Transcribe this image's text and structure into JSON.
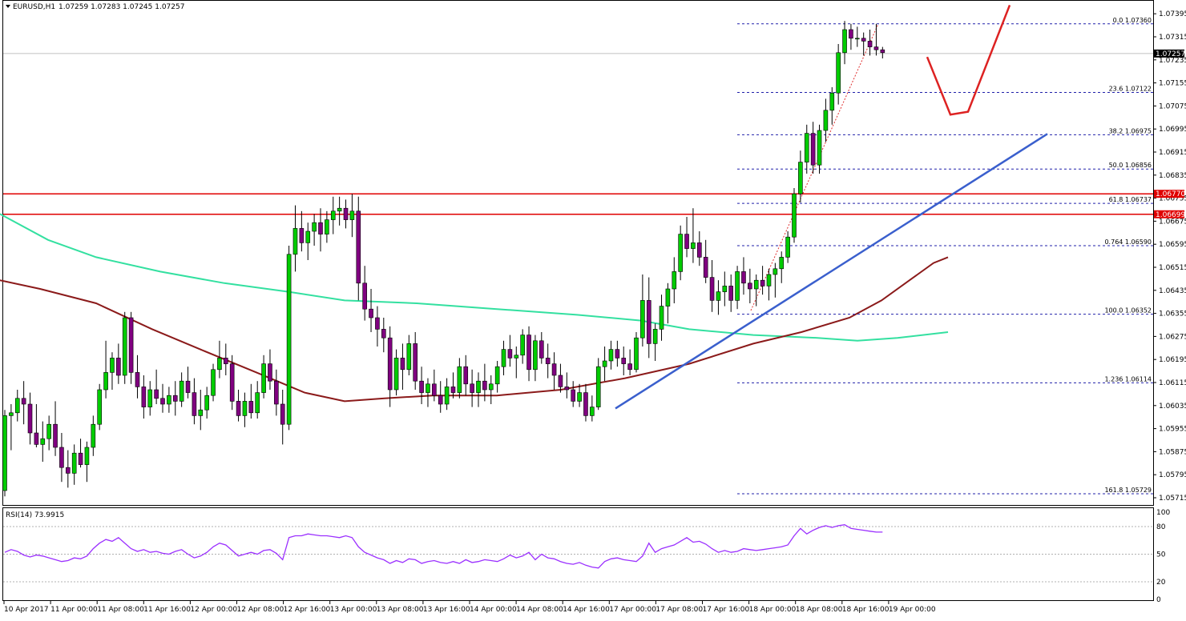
{
  "header": {
    "symbol": "EURUSD,H1",
    "ohlc": "1.07259 1.07283 1.07245 1.07257"
  },
  "rsi_panel": {
    "label": "RSI(14) 73.9915",
    "ticks": [
      "100",
      "80",
      "50",
      "20",
      "0"
    ]
  },
  "price_axis": {
    "ticks": [
      "1.07395",
      "1.07315",
      "1.07235",
      "1.07155",
      "1.07075",
      "1.06995",
      "1.06915",
      "1.06835",
      "1.06755",
      "1.06675",
      "1.06595",
      "1.06515",
      "1.06435",
      "1.06355",
      "1.06275",
      "1.06195",
      "1.06115",
      "1.06035",
      "1.05955",
      "1.05875",
      "1.05795",
      "1.05715"
    ],
    "current_price": "1.07257",
    "level_tags": [
      "1.06770",
      "1.06699"
    ]
  },
  "time_axis": {
    "labels": [
      "10 Apr 2017",
      "11 Apr 00:00",
      "11 Apr 08:00",
      "11 Apr 16:00",
      "12 Apr 00:00",
      "12 Apr 08:00",
      "12 Apr 16:00",
      "13 Apr 00:00",
      "13 Apr 08:00",
      "13 Apr 16:00",
      "14 Apr 00:00",
      "14 Apr 08:00",
      "14 Apr 16:00",
      "17 Apr 00:00",
      "17 Apr 08:00",
      "17 Apr 16:00",
      "18 Apr 00:00",
      "18 Apr 08:00",
      "18 Apr 16:00",
      "19 Apr 00:00"
    ]
  },
  "fib_labels": [
    "0.0 1.07360",
    "23.6 1.07122",
    "38.2 1.06975",
    "50.0 1.06856",
    "61.8 1.06737",
    "0.764 1.06590",
    "100.0 1.06352",
    "1.236 1.06114",
    "161.8 1.05729"
  ],
  "colors": {
    "bull": "#00cc00",
    "bear": "#800080",
    "wick": "#000000",
    "sma_fast": "#33e0a0",
    "sma_slow": "#8b1a1a",
    "fib": "#2020aa",
    "resistance": "#e00000",
    "trendline": "#3a5fcd",
    "projection": "#dd2222",
    "rsi": "#9b30ff"
  },
  "chart_data": {
    "type": "candlestick",
    "timeframe": "H1",
    "ylim": [
      1.0569,
      1.0744
    ],
    "x_labels": [
      "10 Apr 2017",
      "11 Apr 00:00",
      "11 Apr 08:00",
      "11 Apr 16:00",
      "12 Apr 00:00",
      "12 Apr 08:00",
      "12 Apr 16:00",
      "13 Apr 00:00",
      "13 Apr 08:00",
      "13 Apr 16:00",
      "14 Apr 00:00",
      "14 Apr 08:00",
      "14 Apr 16:00",
      "17 Apr 00:00",
      "17 Apr 08:00",
      "17 Apr 16:00",
      "18 Apr 00:00",
      "18 Apr 08:00",
      "18 Apr 16:00",
      "19 Apr 00:00"
    ],
    "bars": [
      [
        1.0574,
        1.0602,
        1.0572,
        1.06
      ],
      [
        1.06,
        1.0604,
        1.0588,
        1.0601
      ],
      [
        1.0601,
        1.0609,
        1.0598,
        1.0606
      ],
      [
        1.0606,
        1.0612,
        1.0597,
        1.0604
      ],
      [
        1.0604,
        1.0608,
        1.059,
        1.0594
      ],
      [
        1.0594,
        1.0604,
        1.0589,
        1.059
      ],
      [
        1.059,
        1.0598,
        1.0584,
        1.0592
      ],
      [
        1.0592,
        1.06,
        1.0588,
        1.0597
      ],
      [
        1.0597,
        1.0605,
        1.0586,
        1.0589
      ],
      [
        1.0589,
        1.0594,
        1.0577,
        1.0582
      ],
      [
        1.0582,
        1.0588,
        1.0575,
        1.058
      ],
      [
        1.058,
        1.059,
        1.0576,
        1.0587
      ],
      [
        1.0587,
        1.0592,
        1.0582,
        1.0583
      ],
      [
        1.0583,
        1.0591,
        1.0577,
        1.0589
      ],
      [
        1.0589,
        1.06,
        1.0586,
        1.0597
      ],
      [
        1.0597,
        1.0611,
        1.0595,
        1.0609
      ],
      [
        1.0609,
        1.0626,
        1.0606,
        1.0615
      ],
      [
        1.0615,
        1.0622,
        1.0609,
        1.062
      ],
      [
        1.062,
        1.0625,
        1.0611,
        1.0614
      ],
      [
        1.0614,
        1.0636,
        1.0611,
        1.0634
      ],
      [
        1.0634,
        1.0636,
        1.0611,
        1.0615
      ],
      [
        1.0615,
        1.0621,
        1.0606,
        1.061
      ],
      [
        1.061,
        1.0614,
        1.0599,
        1.0603
      ],
      [
        1.0603,
        1.0612,
        1.06,
        1.0609
      ],
      [
        1.0609,
        1.0616,
        1.0604,
        1.0606
      ],
      [
        1.0606,
        1.0611,
        1.0601,
        1.0604
      ],
      [
        1.0604,
        1.061,
        1.0601,
        1.0607
      ],
      [
        1.0607,
        1.0612,
        1.06,
        1.0605
      ],
      [
        1.0605,
        1.0615,
        1.0603,
        1.0612
      ],
      [
        1.0612,
        1.0617,
        1.0606,
        1.0608
      ],
      [
        1.0608,
        1.0613,
        1.0597,
        1.06
      ],
      [
        1.06,
        1.0609,
        1.0595,
        1.0602
      ],
      [
        1.0602,
        1.061,
        1.0599,
        1.0607
      ],
      [
        1.0607,
        1.0618,
        1.0605,
        1.0616
      ],
      [
        1.0616,
        1.0626,
        1.0613,
        1.062
      ],
      [
        1.062,
        1.0625,
        1.0614,
        1.0618
      ],
      [
        1.0618,
        1.0621,
        1.0602,
        1.0605
      ],
      [
        1.0605,
        1.0609,
        1.0598,
        1.06
      ],
      [
        1.06,
        1.0608,
        1.0596,
        1.0605
      ],
      [
        1.0605,
        1.0611,
        1.0599,
        1.0601
      ],
      [
        1.0601,
        1.0612,
        1.0599,
        1.0608
      ],
      [
        1.0608,
        1.0621,
        1.0606,
        1.0618
      ],
      [
        1.0618,
        1.0623,
        1.0609,
        1.0612
      ],
      [
        1.0612,
        1.0616,
        1.06,
        1.0604
      ],
      [
        1.0604,
        1.0609,
        1.059,
        1.0597
      ],
      [
        1.0597,
        1.0659,
        1.0595,
        1.0656
      ],
      [
        1.0656,
        1.0673,
        1.065,
        1.0665
      ],
      [
        1.0665,
        1.0671,
        1.0657,
        1.066
      ],
      [
        1.066,
        1.0667,
        1.0654,
        1.0664
      ],
      [
        1.0664,
        1.067,
        1.0659,
        1.0667
      ],
      [
        1.0667,
        1.0672,
        1.0657,
        1.0663
      ],
      [
        1.0663,
        1.0671,
        1.066,
        1.0668
      ],
      [
        1.0668,
        1.0676,
        1.0663,
        1.0671
      ],
      [
        1.0671,
        1.0676,
        1.0666,
        1.0672
      ],
      [
        1.0672,
        1.0675,
        1.0665,
        1.0668
      ],
      [
        1.0668,
        1.0677,
        1.0662,
        1.0671
      ],
      [
        1.0671,
        1.0676,
        1.064,
        1.0646
      ],
      [
        1.0646,
        1.0652,
        1.0633,
        1.0637
      ],
      [
        1.0637,
        1.0644,
        1.0629,
        1.0634
      ],
      [
        1.0634,
        1.0638,
        1.0624,
        1.063
      ],
      [
        1.063,
        1.0634,
        1.0622,
        1.0627
      ],
      [
        1.0627,
        1.0631,
        1.0603,
        1.0609
      ],
      [
        1.0609,
        1.0623,
        1.0607,
        1.062
      ],
      [
        1.062,
        1.0625,
        1.0609,
        1.0616
      ],
      [
        1.0616,
        1.0628,
        1.0614,
        1.0625
      ],
      [
        1.0625,
        1.0629,
        1.0609,
        1.0612
      ],
      [
        1.0612,
        1.0617,
        1.0604,
        1.0608
      ],
      [
        1.0608,
        1.0613,
        1.0603,
        1.0611
      ],
      [
        1.0611,
        1.0616,
        1.0605,
        1.0607
      ],
      [
        1.0607,
        1.0612,
        1.0601,
        1.0604
      ],
      [
        1.0604,
        1.0613,
        1.0602,
        1.061
      ],
      [
        1.061,
        1.0615,
        1.0606,
        1.0608
      ],
      [
        1.0608,
        1.062,
        1.0606,
        1.0617
      ],
      [
        1.0617,
        1.0621,
        1.0607,
        1.0611
      ],
      [
        1.0611,
        1.0616,
        1.0603,
        1.0608
      ],
      [
        1.0608,
        1.0615,
        1.0603,
        1.0612
      ],
      [
        1.0612,
        1.0618,
        1.0605,
        1.0609
      ],
      [
        1.0609,
        1.0614,
        1.0604,
        1.0611
      ],
      [
        1.0611,
        1.0619,
        1.0608,
        1.0617
      ],
      [
        1.0617,
        1.0626,
        1.0614,
        1.0623
      ],
      [
        1.0623,
        1.0628,
        1.0617,
        1.062
      ],
      [
        1.062,
        1.0624,
        1.0613,
        1.0621
      ],
      [
        1.0621,
        1.063,
        1.0618,
        1.0628
      ],
      [
        1.0628,
        1.0631,
        1.0612,
        1.0616
      ],
      [
        1.0616,
        1.0628,
        1.0612,
        1.0626
      ],
      [
        1.0626,
        1.0629,
        1.0618,
        1.062
      ],
      [
        1.062,
        1.0625,
        1.0613,
        1.0618
      ],
      [
        1.0618,
        1.0622,
        1.0609,
        1.0614
      ],
      [
        1.0614,
        1.0618,
        1.0608,
        1.061
      ],
      [
        1.061,
        1.0615,
        1.0606,
        1.0609
      ],
      [
        1.0609,
        1.0612,
        1.0603,
        1.0605
      ],
      [
        1.0605,
        1.0611,
        1.0603,
        1.0608
      ],
      [
        1.0608,
        1.0611,
        1.0598,
        1.06
      ],
      [
        1.06,
        1.0607,
        1.0598,
        1.0603
      ],
      [
        1.0603,
        1.062,
        1.0602,
        1.0617
      ],
      [
        1.0617,
        1.0624,
        1.0612,
        1.0619
      ],
      [
        1.0619,
        1.0626,
        1.0616,
        1.0623
      ],
      [
        1.0623,
        1.0626,
        1.0617,
        1.062
      ],
      [
        1.062,
        1.0624,
        1.0614,
        1.0618
      ],
      [
        1.0618,
        1.0623,
        1.0614,
        1.0616
      ],
      [
        1.0616,
        1.0629,
        1.0615,
        1.0627
      ],
      [
        1.0627,
        1.0649,
        1.0624,
        1.064
      ],
      [
        1.064,
        1.0648,
        1.062,
        1.0625
      ],
      [
        1.0625,
        1.0632,
        1.0619,
        1.063
      ],
      [
        1.063,
        1.0642,
        1.0626,
        1.0638
      ],
      [
        1.0638,
        1.0646,
        1.0632,
        1.0644
      ],
      [
        1.0644,
        1.0655,
        1.0639,
        1.065
      ],
      [
        1.065,
        1.0666,
        1.0647,
        1.0663
      ],
      [
        1.0663,
        1.0669,
        1.0655,
        1.0658
      ],
      [
        1.0658,
        1.0672,
        1.0653,
        1.066
      ],
      [
        1.066,
        1.0664,
        1.0652,
        1.0655
      ],
      [
        1.0655,
        1.0661,
        1.0646,
        1.0648
      ],
      [
        1.0648,
        1.0654,
        1.0636,
        1.064
      ],
      [
        1.064,
        1.0647,
        1.0635,
        1.0643
      ],
      [
        1.0643,
        1.065,
        1.0638,
        1.0645
      ],
      [
        1.0645,
        1.0649,
        1.0636,
        1.064
      ],
      [
        1.064,
        1.0652,
        1.0637,
        1.065
      ],
      [
        1.065,
        1.0655,
        1.0642,
        1.0646
      ],
      [
        1.0646,
        1.0651,
        1.0639,
        1.0644
      ],
      [
        1.0644,
        1.0649,
        1.0638,
        1.0647
      ],
      [
        1.0647,
        1.0652,
        1.0642,
        1.0645
      ],
      [
        1.0645,
        1.0651,
        1.064,
        1.0649
      ],
      [
        1.0649,
        1.0653,
        1.0641,
        1.0651
      ],
      [
        1.0651,
        1.0657,
        1.0646,
        1.0655
      ],
      [
        1.0655,
        1.0664,
        1.0653,
        1.0662
      ],
      [
        1.0662,
        1.0679,
        1.066,
        1.0677
      ],
      [
        1.0677,
        1.0692,
        1.0674,
        1.0688
      ],
      [
        1.0688,
        1.0701,
        1.0684,
        1.0698
      ],
      [
        1.0698,
        1.0702,
        1.0684,
        1.0687
      ],
      [
        1.0687,
        1.0701,
        1.0684,
        1.0699
      ],
      [
        1.0699,
        1.071,
        1.0695,
        1.0706
      ],
      [
        1.0706,
        1.0714,
        1.0701,
        1.0712
      ],
      [
        1.0712,
        1.0729,
        1.0708,
        1.0726
      ],
      [
        1.0726,
        1.0737,
        1.0722,
        1.0734
      ],
      [
        1.0734,
        1.0736,
        1.0727,
        1.0731
      ],
      [
        1.0731,
        1.0735,
        1.0728,
        1.0731
      ],
      [
        1.0731,
        1.0733,
        1.0725,
        1.073
      ],
      [
        1.073,
        1.0734,
        1.0725,
        1.0728
      ],
      [
        1.0728,
        1.0736,
        1.0725,
        1.0727
      ],
      [
        1.0727,
        1.0728,
        1.0724,
        1.0726
      ]
    ],
    "sma_fast": [
      [
        0,
        1.067
      ],
      [
        60,
        1.0661
      ],
      [
        120,
        1.0655
      ],
      [
        200,
        1.065
      ],
      [
        280,
        1.0646
      ],
      [
        360,
        1.0643
      ],
      [
        430,
        1.064
      ],
      [
        520,
        1.0639
      ],
      [
        620,
        1.0637
      ],
      [
        720,
        1.0635
      ],
      [
        800,
        1.0633
      ],
      [
        860,
        1.063
      ],
      [
        940,
        1.0628
      ],
      [
        1020,
        1.0627
      ],
      [
        1070,
        1.0626
      ],
      [
        1120,
        1.0627
      ],
      [
        1183,
        1.0629
      ]
    ],
    "sma_slow": [
      [
        0,
        1.0647
      ],
      [
        50,
        1.0644
      ],
      [
        120,
        1.0639
      ],
      [
        190,
        1.063
      ],
      [
        250,
        1.0623
      ],
      [
        320,
        1.0615
      ],
      [
        380,
        1.0608
      ],
      [
        430,
        1.0605
      ],
      [
        480,
        1.0606
      ],
      [
        540,
        1.0607
      ],
      [
        620,
        1.0607
      ],
      [
        700,
        1.0609
      ],
      [
        780,
        1.0613
      ],
      [
        860,
        1.0618
      ],
      [
        940,
        1.0625
      ],
      [
        1000,
        1.0629
      ],
      [
        1060,
        1.0634
      ],
      [
        1100,
        1.064
      ],
      [
        1140,
        1.0648
      ],
      [
        1165,
        1.0653
      ],
      [
        1183,
        1.0655
      ]
    ],
    "fib_levels": [
      1.0736,
      1.07122,
      1.06975,
      1.06856,
      1.06737,
      1.0659,
      1.06352,
      1.06114,
      1.05729
    ],
    "horizontal_levels": [
      1.0677,
      1.06699
    ],
    "current_price": 1.07257,
    "trendline": [
      [
        768,
        1.06025
      ],
      [
        1307,
        1.06978
      ]
    ],
    "projection": [
      [
        1157,
        1.07245
      ],
      [
        1186,
        1.07045
      ],
      [
        1208,
        1.07055
      ],
      [
        1260,
        1.07425
      ]
    ],
    "fib_swing_line": [
      [
        937,
        1.06365
      ],
      [
        1096,
        1.0736
      ]
    ],
    "rsi": {
      "ylim": [
        0,
        100
      ],
      "levels": [
        100,
        80,
        50,
        20,
        0
      ],
      "values": [
        52,
        55,
        53,
        49,
        47,
        49,
        48,
        46,
        44,
        42,
        43,
        46,
        45,
        48,
        56,
        62,
        66,
        64,
        68,
        62,
        56,
        53,
        55,
        52,
        53,
        51,
        50,
        53,
        55,
        50,
        46,
        48,
        52,
        58,
        62,
        60,
        54,
        48,
        50,
        52,
        50,
        54,
        55,
        51,
        44,
        68,
        70,
        70,
        72,
        71,
        70,
        70,
        69,
        68,
        70,
        68,
        58,
        52,
        49,
        46,
        44,
        40,
        43,
        41,
        45,
        44,
        40,
        42,
        43,
        41,
        40,
        42,
        40,
        44,
        41,
        42,
        44,
        43,
        42,
        45,
        49,
        46,
        48,
        52,
        44,
        50,
        46,
        45,
        42,
        40,
        39,
        41,
        38,
        36,
        35,
        42,
        45,
        46,
        44,
        43,
        42,
        48,
        62,
        52,
        56,
        58,
        60,
        64,
        68,
        63,
        64,
        61,
        56,
        52,
        54,
        52,
        53,
        56,
        55,
        54,
        55,
        56,
        57,
        58,
        60,
        70,
        78,
        72,
        76,
        79,
        81,
        79,
        81,
        82,
        78,
        77,
        76,
        75,
        74,
        74
      ]
    }
  }
}
